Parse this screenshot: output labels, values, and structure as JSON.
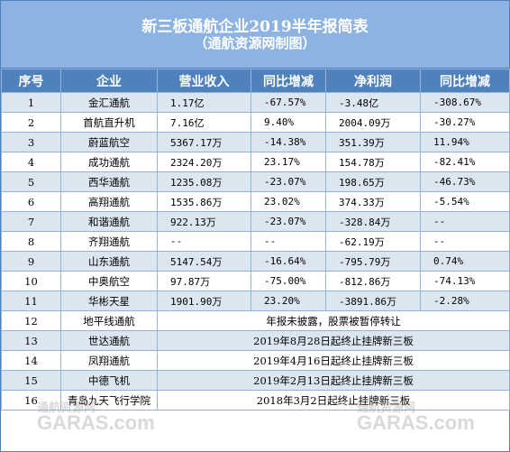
{
  "title": {
    "line1": "新三板通航企业2019半年报简表",
    "line2": "（通航资源网制图）"
  },
  "headers": [
    "序号",
    "企业",
    "营业收入",
    "同比增减",
    "净利润",
    "同比增减"
  ],
  "rows": [
    {
      "no": "1",
      "company": "金汇通航",
      "revenue": "1.17亿",
      "rev_change": "-67.57%",
      "profit": "-3.48亿",
      "profit_change": "-308.67%"
    },
    {
      "no": "2",
      "company": "首航直升机",
      "revenue": "7.16亿",
      "rev_change": "9.40%",
      "profit": "2004.09万",
      "profit_change": "-30.27%"
    },
    {
      "no": "3",
      "company": "蔚蓝航空",
      "revenue": "5367.17万",
      "rev_change": "-14.38%",
      "profit": "351.39万",
      "profit_change": "11.94%"
    },
    {
      "no": "4",
      "company": "成功通航",
      "revenue": "2324.20万",
      "rev_change": "23.17%",
      "profit": "154.78万",
      "profit_change": "-82.41%"
    },
    {
      "no": "5",
      "company": "西华通航",
      "revenue": "1235.08万",
      "rev_change": "-23.07%",
      "profit": "198.65万",
      "profit_change": "-46.73%"
    },
    {
      "no": "6",
      "company": "高翔通航",
      "revenue": "1535.86万",
      "rev_change": "23.02%",
      "profit": "374.33万",
      "profit_change": "-5.54%"
    },
    {
      "no": "7",
      "company": "和谐通航",
      "revenue": "922.13万",
      "rev_change": "-23.07%",
      "profit": "-328.84万",
      "profit_change": "--"
    },
    {
      "no": "8",
      "company": "齐翔通航",
      "revenue": "--",
      "rev_change": "--",
      "profit": "-62.19万",
      "profit_change": "--"
    },
    {
      "no": "9",
      "company": "山东通航",
      "revenue": "5147.54万",
      "rev_change": "-16.64%",
      "profit": "-795.79万",
      "profit_change": "0.74%"
    },
    {
      "no": "10",
      "company": "中奥航空",
      "revenue": "97.87万",
      "rev_change": "-75.00%",
      "profit": "-812.86万",
      "profit_change": "-74.13%"
    },
    {
      "no": "11",
      "company": "华彬天星",
      "revenue": "1901.90万",
      "rev_change": "23.20%",
      "profit": "-3891.86万",
      "profit_change": "-2.28%"
    }
  ],
  "notes": [
    {
      "no": "12",
      "company": "地平线通航",
      "note": "年报未披露，股票被暂停转让"
    },
    {
      "no": "13",
      "company": "世达通航",
      "note": "2019年8月28日起终止挂牌新三板"
    },
    {
      "no": "14",
      "company": "凤翔通航",
      "note": "2019年4月16日起终止挂牌新三板"
    },
    {
      "no": "15",
      "company": "中德飞机",
      "note": "2019年2月13日起终止挂牌新三板"
    },
    {
      "no": "16",
      "company": "青岛九天飞行学院",
      "note": "2018年3月2日起终止挂牌新三板"
    }
  ],
  "watermark": {
    "left": "通航资源网",
    "left_sub": "GARAS.com",
    "right": "通航资源网",
    "right_sub": "GARAS.com"
  }
}
